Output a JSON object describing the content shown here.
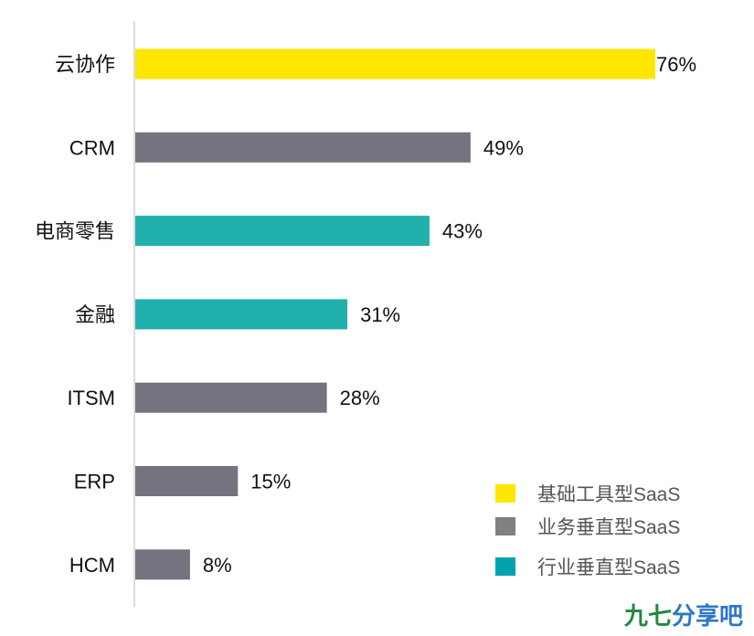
{
  "chart_data": {
    "type": "bar",
    "orientation": "horizontal",
    "categories": [
      "云协作",
      "CRM",
      "电商零售",
      "金融",
      "ITSM",
      "ERP",
      "HCM"
    ],
    "values": [
      76,
      49,
      43,
      31,
      28,
      15,
      8
    ],
    "value_labels": [
      "76%",
      "49%",
      "43%",
      "31%",
      "28%",
      "15%",
      "8%"
    ],
    "bar_groups": [
      "基础工具型SaaS",
      "业务垂直型SaaS",
      "行业垂直型SaaS",
      "行业垂直型SaaS",
      "业务垂直型SaaS",
      "业务垂直型SaaS",
      "业务垂直型SaaS"
    ],
    "xlim": [
      0,
      76
    ],
    "grid": false,
    "legend": {
      "placement": "bottom-right",
      "entries": [
        {
          "name": "基础工具型SaaS",
          "color": "#FFE600"
        },
        {
          "name": "业务垂直型SaaS",
          "color": "#808080"
        },
        {
          "name": "行业垂直型SaaS",
          "color": "#00A3AE"
        }
      ]
    },
    "group_colors": {
      "基础工具型SaaS": "#FFE600",
      "业务垂直型SaaS": "#747480",
      "行业垂直型SaaS": "#22B0AD"
    }
  },
  "watermark": {
    "text": "九七分享吧",
    "colors": [
      "#1F8A3B",
      "#2C78C8"
    ]
  }
}
